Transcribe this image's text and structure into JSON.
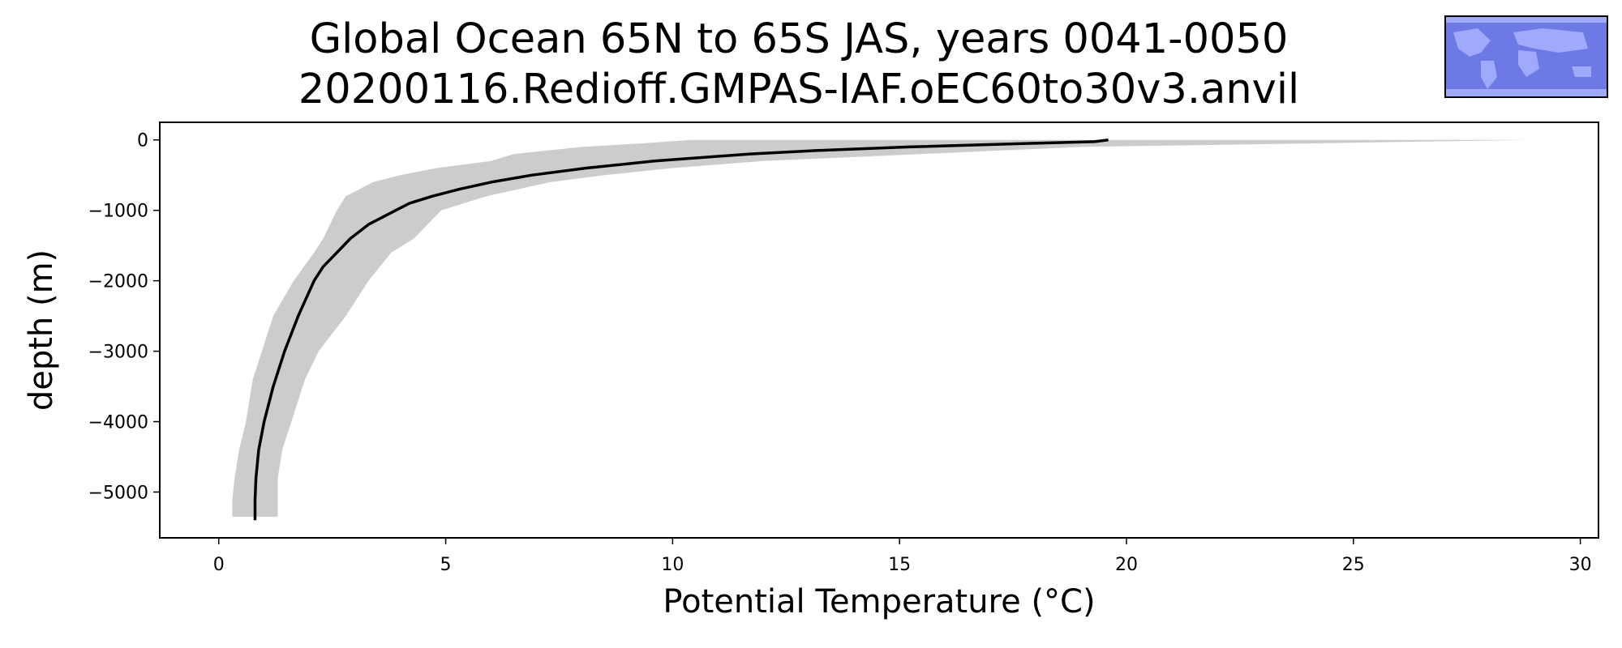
{
  "chart_data": {
    "type": "line",
    "title": "Global Ocean 65N to 65S JAS, years 0041-0050",
    "subtitle": "20200116.Redioff.GMPAS-IAF.oEC60to30v3.anvil",
    "xlabel": "Potential Temperature (°C)",
    "ylabel": "depth (m)",
    "xlim": [
      -1.3,
      30.4
    ],
    "ylim": [
      -5650,
      250
    ],
    "xticks": [
      0,
      5,
      10,
      15,
      20,
      25,
      30
    ],
    "yticks": [
      0,
      -1000,
      -2000,
      -3000,
      -4000,
      -5000
    ],
    "xtick_labels": [
      "0",
      "5",
      "10",
      "15",
      "20",
      "25",
      "30"
    ],
    "ytick_labels": [
      "0",
      "−1000",
      "−2000",
      "−3000",
      "−4000",
      "−5000"
    ],
    "grid": false,
    "series": [
      {
        "kind": "line",
        "color": "#000000",
        "depth": [
          0,
          -25,
          -50,
          -100,
          -150,
          -200,
          -300,
          -400,
          -500,
          -600,
          -700,
          -800,
          -900,
          -1000,
          -1200,
          -1400,
          -1600,
          -1800,
          -2000,
          -2500,
          -3000,
          -3500,
          -4000,
          -4400,
          -4800,
          -5100,
          -5400
        ],
        "x": [
          19.6,
          19.3,
          17.8,
          15.2,
          13.2,
          11.7,
          9.6,
          8.1,
          6.9,
          6.0,
          5.3,
          4.7,
          4.2,
          3.9,
          3.3,
          2.9,
          2.6,
          2.3,
          2.1,
          1.75,
          1.45,
          1.2,
          1.0,
          0.88,
          0.82,
          0.8,
          0.8
        ]
      },
      {
        "kind": "band",
        "color": "#cccccc",
        "depth": [
          0,
          -50,
          -100,
          -200,
          -300,
          -400,
          -500,
          -600,
          -800,
          -1000,
          -1400,
          -1600,
          -2000,
          -2500,
          -3000,
          -3400,
          -4000,
          -4400,
          -4800,
          -5100,
          -5350
        ],
        "lower": [
          10.4,
          9.3,
          8.0,
          6.5,
          6.0,
          4.8,
          4.0,
          3.4,
          2.8,
          2.6,
          2.3,
          2.1,
          1.65,
          1.2,
          0.95,
          0.75,
          0.6,
          0.45,
          0.35,
          0.3,
          0.3
        ],
        "upper": [
          28.9,
          24.0,
          19.0,
          15.5,
          12.0,
          10.0,
          8.5,
          7.3,
          5.9,
          4.9,
          4.3,
          3.8,
          3.3,
          2.8,
          2.2,
          1.9,
          1.6,
          1.4,
          1.3,
          1.3,
          1.3
        ]
      }
    ]
  },
  "inset_map": {
    "label": "region-map-inset",
    "ocean_color": "#6d7ae6",
    "land_color": "#a8b3ff",
    "border_color": "#000000"
  }
}
